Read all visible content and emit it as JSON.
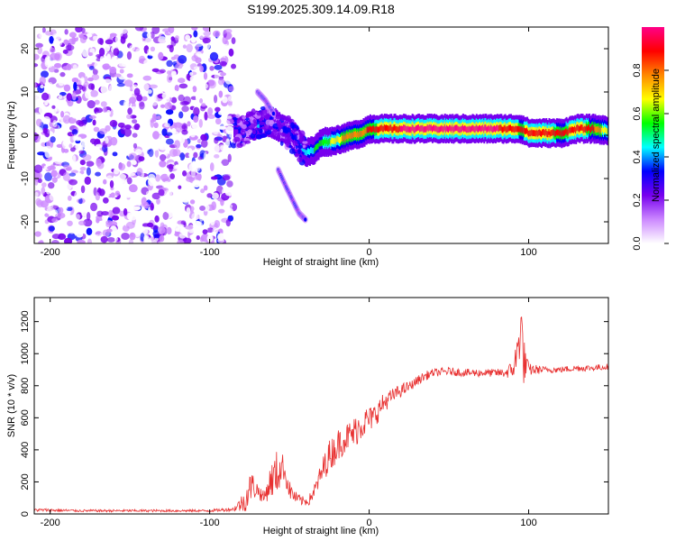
{
  "title": "S199.2025.309.14.09.R18",
  "chart_data": [
    {
      "type": "heatmap",
      "name": "spectrogram",
      "xlabel": "Height of straight line (km)",
      "ylabel": "Frequency (Hz)",
      "xlim": [
        -210,
        150
      ],
      "ylim": [
        -25,
        25
      ],
      "xticks": [
        -200,
        -100,
        0,
        100
      ],
      "xtick_labels": [
        "-200",
        "-100",
        "0",
        "100"
      ],
      "yticks": [
        -20,
        -10,
        0,
        10,
        20
      ],
      "ytick_labels": [
        "-20",
        "-10",
        "0",
        "10",
        "20"
      ],
      "colorbar": {
        "label": "Normalized spectral amplitude",
        "range": [
          0,
          1
        ],
        "ticks": [
          0,
          0.2,
          0.4,
          0.6,
          0.8
        ],
        "tick_labels": [
          "0.0",
          "0.2",
          "0.4",
          "0.6",
          "0.8"
        ],
        "colors": [
          "#ffffff",
          "#cc88ff",
          "#7700ee",
          "#0000ff",
          "#00ffff",
          "#00ff00",
          "#ffff00",
          "#ff8800",
          "#ff0000",
          "#ff0088"
        ]
      },
      "noise_region": {
        "x_from": -210,
        "x_to": -85,
        "level": 0.15
      },
      "ridge": {
        "x": [
          -85,
          -80,
          -75,
          -70,
          -65,
          -60,
          -55,
          -50,
          -45,
          -40,
          -35,
          -30,
          -25,
          -20,
          -15,
          -10,
          -5,
          0,
          10,
          20,
          30,
          40,
          50,
          60,
          70,
          80,
          90,
          95,
          100,
          110,
          120,
          130,
          140,
          150
        ],
        "freq": [
          1.0,
          1.0,
          2.0,
          2.5,
          3.0,
          2.5,
          1.5,
          0.5,
          -1.5,
          -4.0,
          -3.5,
          -1.5,
          -1.5,
          -1.0,
          -0.5,
          0.0,
          0.5,
          1.5,
          1.5,
          1.5,
          1.5,
          1.5,
          1.5,
          1.5,
          1.5,
          1.5,
          1.5,
          1.5,
          0.5,
          0.5,
          0.5,
          1.5,
          1.5,
          1.0
        ],
        "amp": [
          0.25,
          0.3,
          0.35,
          0.4,
          0.35,
          0.3,
          0.35,
          0.3,
          0.35,
          0.45,
          0.5,
          0.55,
          0.6,
          0.7,
          0.75,
          0.8,
          0.8,
          0.85,
          0.9,
          0.95,
          0.95,
          0.95,
          0.95,
          0.95,
          0.95,
          0.95,
          0.9,
          0.85,
          0.9,
          0.9,
          0.85,
          0.9,
          0.85,
          0.6
        ]
      },
      "secondary_branch": {
        "x": [
          -70,
          -65,
          -60
        ],
        "freq": [
          10.0,
          8.0,
          5.0
        ]
      },
      "lower_branch": {
        "x": [
          -57,
          -52,
          -48,
          -44,
          -40
        ],
        "freq": [
          -8.0,
          -12.0,
          -15.0,
          -18.0,
          -19.5
        ]
      }
    },
    {
      "type": "line",
      "name": "snr",
      "xlabel": "Height of straight line (km)",
      "ylabel": "SNR (10 * v/v)",
      "xlim": [
        -210,
        150
      ],
      "ylim": [
        0,
        1350
      ],
      "xticks": [
        -200,
        -100,
        0,
        100
      ],
      "xtick_labels": [
        "-200",
        "-100",
        "0",
        "100"
      ],
      "yticks": [
        0,
        200,
        400,
        600,
        800,
        1000,
        1200
      ],
      "ytick_labels": [
        "0",
        "200",
        "400",
        "600",
        "800",
        "1000",
        "1200"
      ],
      "color": "#e83030",
      "series": [
        {
          "name": "SNR",
          "x": [
            -210,
            -180,
            -150,
            -120,
            -100,
            -85,
            -78,
            -74,
            -70,
            -66,
            -62,
            -58,
            -54,
            -50,
            -46,
            -42,
            -38,
            -34,
            -30,
            -26,
            -22,
            -18,
            -14,
            -10,
            -6,
            -2,
            2,
            6,
            10,
            14,
            18,
            22,
            26,
            30,
            35,
            40,
            50,
            60,
            70,
            80,
            85,
            90,
            93,
            95,
            97,
            100,
            110,
            120,
            130,
            140,
            150
          ],
          "y": [
            25,
            20,
            20,
            20,
            20,
            30,
            80,
            180,
            150,
            100,
            200,
            250,
            300,
            150,
            100,
            80,
            80,
            150,
            250,
            350,
            400,
            450,
            480,
            500,
            550,
            580,
            600,
            650,
            700,
            730,
            760,
            780,
            800,
            830,
            860,
            880,
            890,
            880,
            880,
            880,
            880,
            900,
            1000,
            1200,
            950,
            900,
            900,
            900,
            910,
            910,
            920
          ],
          "spread": [
            20,
            15,
            15,
            15,
            15,
            25,
            150,
            200,
            100,
            80,
            200,
            300,
            150,
            120,
            80,
            60,
            60,
            100,
            150,
            200,
            200,
            200,
            180,
            200,
            200,
            180,
            150,
            150,
            120,
            100,
            80,
            80,
            60,
            60,
            60,
            50,
            50,
            50,
            50,
            50,
            60,
            120,
            250,
            400,
            300,
            80,
            40,
            40,
            40,
            40,
            40
          ]
        }
      ]
    }
  ]
}
